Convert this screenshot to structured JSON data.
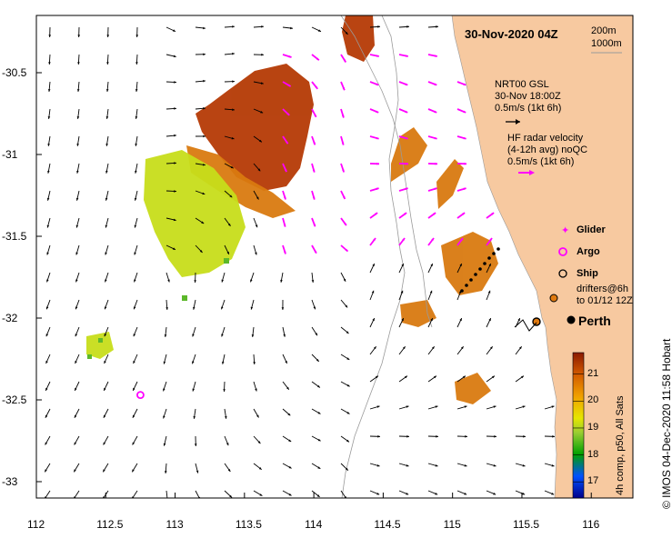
{
  "map": {
    "title": "30-Nov-2020 04Z",
    "depth_contours": [
      "200m",
      "1000m"
    ],
    "city": "Perth",
    "lon_ticks": [
      "112",
      "112.5",
      "113",
      "113.5",
      "114",
      "114.5",
      "115",
      "115.5",
      "116"
    ],
    "lat_ticks": [
      "-30.5",
      "-31",
      "-31.5",
      "-32",
      "-32.5",
      "-33"
    ],
    "land_color": "#f7c9a0",
    "vector_color_model": "#000000",
    "vector_color_radar": "#ff00ff",
    "argo_position": {
      "lon": 112.75,
      "lat": -32.47
    }
  },
  "legend": {
    "model_title": "NRT00 GSL",
    "model_time": "30-Nov 18:00Z",
    "model_scale": "0.5m/s (1kt 6h)",
    "radar_title": "HF radar velocity",
    "radar_avg": "(4-12h avg) noQC",
    "radar_scale": "0.5m/s (1kt 6h)",
    "glider_label": "Glider",
    "argo_label": "Argo",
    "ship_label": "Ship",
    "drifters_line1": "drifters@6h",
    "drifters_line2": "to 01/12 12Z"
  },
  "colorbar": {
    "title": "4h comp, p50, All Sats",
    "ticks": [
      "21",
      "20",
      "19",
      "18",
      "17"
    ],
    "range": [
      16.4,
      21.8
    ]
  },
  "credit": "© IMOS 04-Dec-2020 11:58 Hobart"
}
